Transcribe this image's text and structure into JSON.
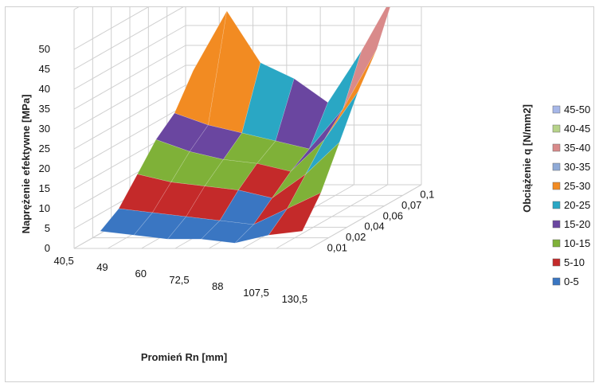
{
  "chart_data": {
    "type": "surface",
    "title": "",
    "xlabel": "Promień Rn [mm]",
    "ylabel": "Obciążenie q [N/mm2]",
    "zlabel": "Naprężenie efektywne [MPa]",
    "x_categories": [
      "40,5",
      "49",
      "60",
      "72,5",
      "88",
      "107,5",
      "130,5"
    ],
    "y_categories": [
      "0,01",
      "0,02",
      "0,04",
      "0,06",
      "0,07",
      "0,1"
    ],
    "z_ticks": [
      "0",
      "5",
      "10",
      "15",
      "20",
      "25",
      "30",
      "35",
      "40",
      "45",
      "50"
    ],
    "zlim": [
      0,
      50
    ],
    "grid": true,
    "legend_position": "right",
    "values": [
      [
        3,
        2,
        1,
        1,
        0,
        2,
        3
      ],
      [
        6,
        5,
        4,
        3,
        2,
        6,
        10
      ],
      [
        12,
        10,
        9,
        8,
        6,
        12,
        20
      ],
      [
        18,
        15,
        13,
        12,
        10,
        18,
        30
      ],
      [
        22,
        19,
        17,
        15,
        13,
        23,
        38
      ],
      [
        30,
        45,
        32,
        28,
        22,
        35,
        50
      ]
    ],
    "bands": [
      {
        "name": "45-50",
        "min": 45,
        "max": 50,
        "color": "#a6b7e8"
      },
      {
        "name": "40-45",
        "min": 40,
        "max": 45,
        "color": "#b7d389"
      },
      {
        "name": "35-40",
        "min": 35,
        "max": 40,
        "color": "#d98a8a"
      },
      {
        "name": "30-35",
        "min": 30,
        "max": 35,
        "color": "#8faad7"
      },
      {
        "name": "25-30",
        "min": 25,
        "max": 30,
        "color": "#f28b22"
      },
      {
        "name": "20-25",
        "min": 20,
        "max": 25,
        "color": "#2aa7c4"
      },
      {
        "name": "15-20",
        "min": 15,
        "max": 20,
        "color": "#6a46a0"
      },
      {
        "name": "10-15",
        "min": 10,
        "max": 15,
        "color": "#7fb138"
      },
      {
        "name": "5-10",
        "min": 5,
        "max": 10,
        "color": "#c42a2a"
      },
      {
        "name": "0-5",
        "min": 0,
        "max": 5,
        "color": "#3a76c2"
      }
    ]
  }
}
